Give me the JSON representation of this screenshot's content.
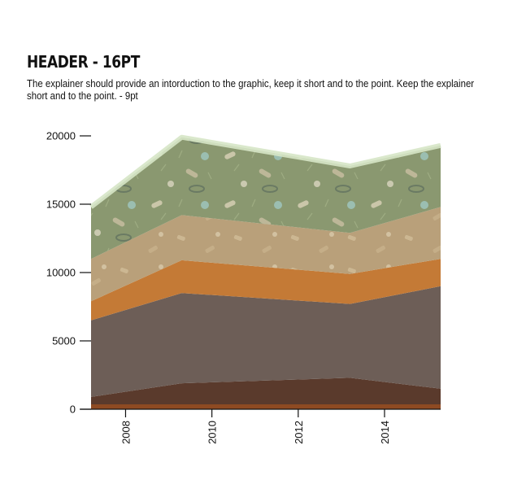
{
  "header": "HEADER - 16PT",
  "explainer": "The explainer should provide an intorduction to the graphic, keep it short and to the point.  Keep the explainer short and to the point. - 9pt",
  "chart_data": {
    "type": "area",
    "stacked": true,
    "x": [
      2007.2,
      2009.3,
      2013.2,
      2015.3
    ],
    "xticks": [
      "2008",
      "2010",
      "2012",
      "2014"
    ],
    "xtick_values": [
      2008,
      2010,
      2012,
      2014
    ],
    "xlim": [
      2007.2,
      2015.3
    ],
    "yticks": [
      "0",
      "5000",
      "10000",
      "15000",
      "20000"
    ],
    "ytick_values": [
      0,
      5000,
      10000,
      15000,
      20000
    ],
    "ylim": [
      0,
      20000
    ],
    "grid": false,
    "series": [
      {
        "values": [
          900,
          1900,
          2300,
          1500
        ],
        "color": "#5a3a2c"
      },
      {
        "values": [
          5600,
          6600,
          5400,
          7500
        ],
        "color": "#6d5e57"
      },
      {
        "values": [
          1400,
          2400,
          2200,
          2000
        ],
        "color": "#c47a36"
      },
      {
        "values": [
          3100,
          3300,
          3000,
          3800
        ],
        "color": "#b9a07a"
      },
      {
        "values": [
          3800,
          5700,
          4900,
          4500
        ],
        "color": "#8a9870"
      }
    ]
  }
}
